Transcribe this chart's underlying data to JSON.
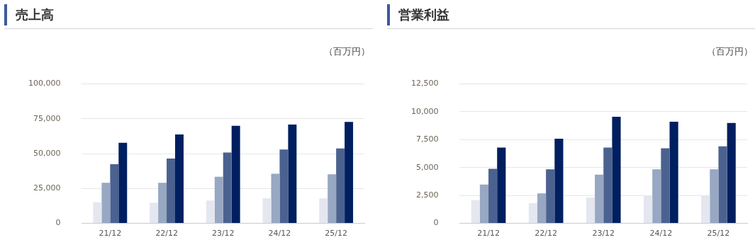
{
  "chart_data": [
    {
      "type": "bar",
      "title": "売上高",
      "ylabel": "（百万円）",
      "categories": [
        "21/12",
        "22/12",
        "23/12",
        "24/12",
        "25/12"
      ],
      "series": [
        {
          "color": "#e4e7ef",
          "values": [
            15100,
            14700,
            16400,
            17800,
            17800
          ]
        },
        {
          "color": "#98a7c2",
          "values": [
            29100,
            29100,
            33300,
            35500,
            35100
          ]
        },
        {
          "color": "#4b6290",
          "values": [
            42400,
            46400,
            50800,
            52900,
            53700
          ]
        },
        {
          "color": "#001f60",
          "values": [
            57700,
            63700,
            69900,
            70800,
            72800
          ]
        }
      ],
      "ylim": [
        0,
        100000
      ],
      "yticks": [
        {
          "value": 0,
          "label": "0"
        },
        {
          "value": 25000,
          "label": "25,000"
        },
        {
          "value": 50000,
          "label": "50,000"
        },
        {
          "value": 75000,
          "label": "75,000"
        },
        {
          "value": 100000,
          "label": "100,000"
        }
      ],
      "grid": "y",
      "legend": false
    },
    {
      "type": "bar",
      "title": "営業利益",
      "ylabel": "（百万円）",
      "categories": [
        "21/12",
        "22/12",
        "23/12",
        "24/12",
        "25/12"
      ],
      "series": [
        {
          "color": "#e4e7ef",
          "values": [
            2070,
            1800,
            2290,
            2490,
            2490
          ]
        },
        {
          "color": "#98a7c2",
          "values": [
            3470,
            2670,
            4360,
            4830,
            4830
          ]
        },
        {
          "color": "#4b6290",
          "values": [
            4880,
            4830,
            6790,
            6730,
            6900
          ]
        },
        {
          "color": "#001f60",
          "values": [
            6790,
            7590,
            9550,
            9110,
            9000
          ]
        }
      ],
      "ylim": [
        0,
        12500
      ],
      "yticks": [
        {
          "value": 0,
          "label": "0"
        },
        {
          "value": 2500,
          "label": "2,500"
        },
        {
          "value": 5000,
          "label": "5,000"
        },
        {
          "value": 7500,
          "label": "7,500"
        },
        {
          "value": 10000,
          "label": "10,000"
        },
        {
          "value": 12500,
          "label": "12,500"
        }
      ],
      "grid": "y",
      "legend": false
    }
  ]
}
